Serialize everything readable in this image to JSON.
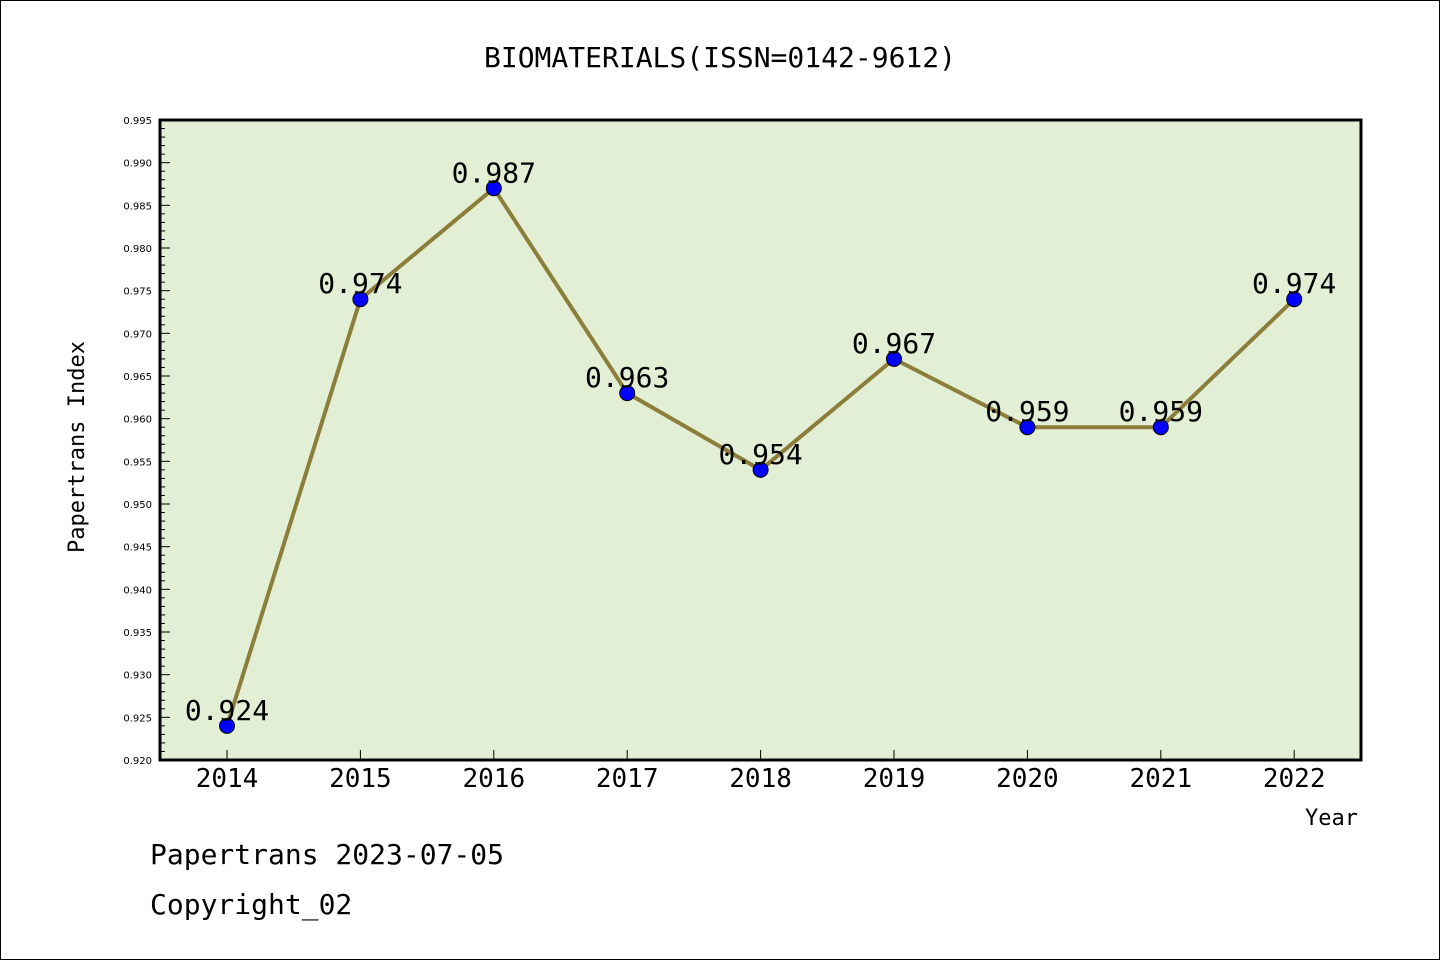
{
  "chart_data": {
    "type": "line",
    "title": "BIOMATERIALS(ISSN=0142-9612)",
    "xlabel": "Year",
    "ylabel": "Papertrans Index",
    "categories": [
      "2014",
      "2015",
      "2016",
      "2017",
      "2018",
      "2019",
      "2020",
      "2021",
      "2022"
    ],
    "series": [
      {
        "values": [
          0.924,
          0.974,
          0.987,
          0.963,
          0.954,
          0.967,
          0.959,
          0.959,
          0.974
        ],
        "line_color": "#8b7d3a",
        "marker_color": "#0000ff"
      }
    ],
    "data_labels": [
      "0.924",
      "0.974",
      "0.987",
      "0.963",
      "0.954",
      "0.967",
      "0.959",
      "0.959",
      "0.974"
    ],
    "ylim": [
      0.92,
      0.995
    ],
    "yticks": [
      "0.920",
      "0.925",
      "0.930",
      "0.935",
      "0.940",
      "0.945",
      "0.950",
      "0.955",
      "0.960",
      "0.965",
      "0.970",
      "0.975",
      "0.980",
      "0.985",
      "0.990",
      "0.995"
    ],
    "grid": false,
    "plot_background": "#e2efd5"
  },
  "footer": {
    "line1": "Papertrans 2023-07-05",
    "line2": "Copyright_02"
  }
}
